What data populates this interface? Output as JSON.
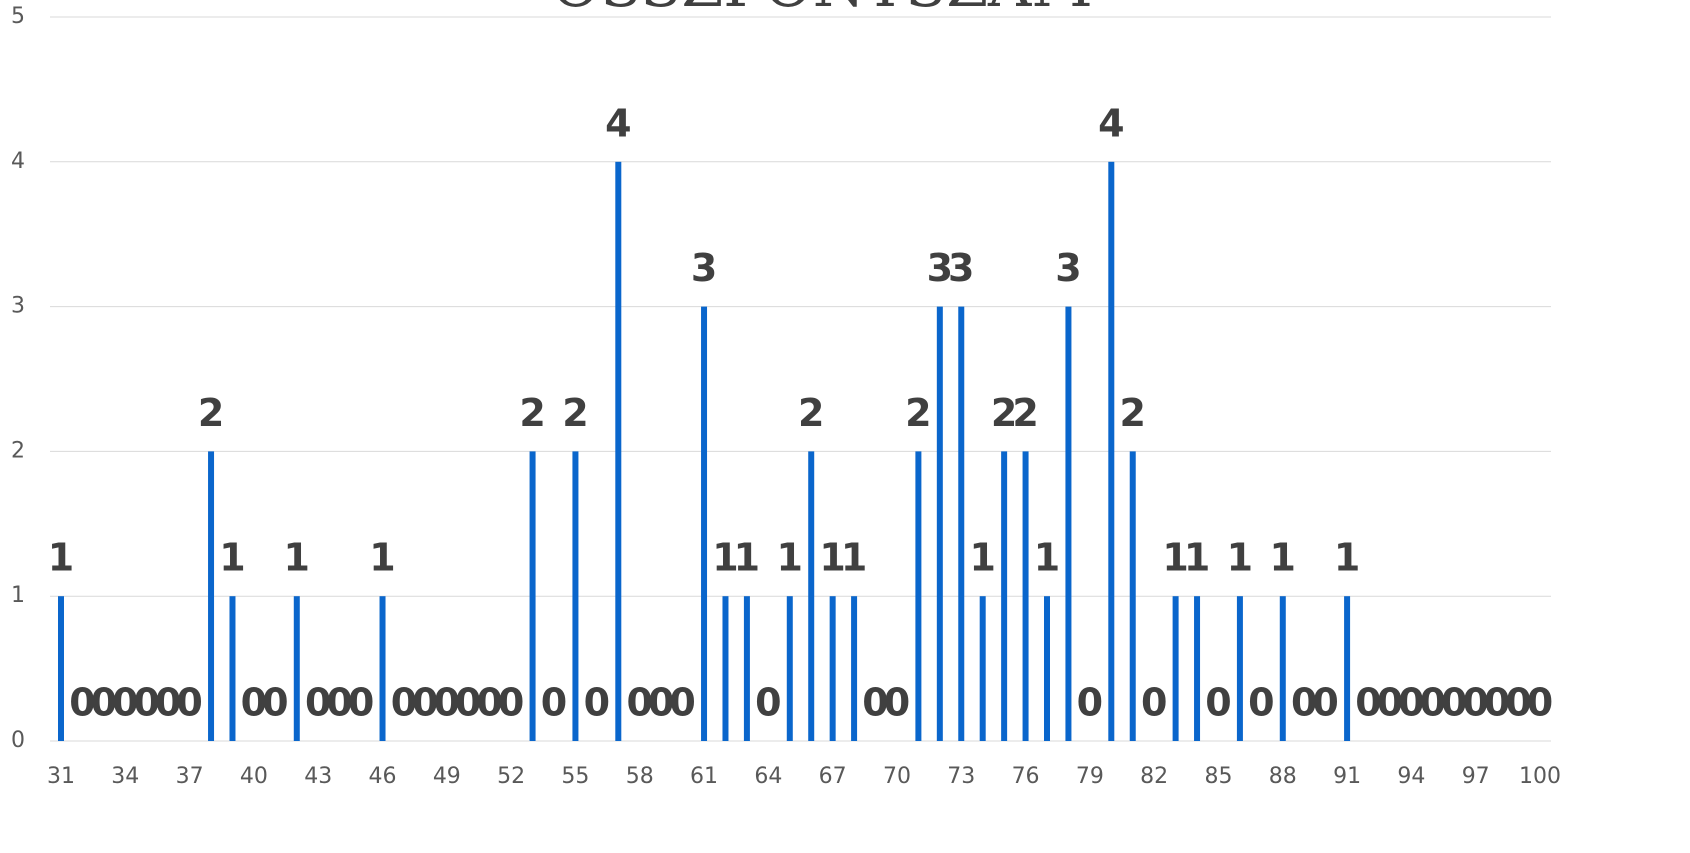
{
  "chart_data": {
    "type": "bar",
    "title": "ÖSSZPONTSZÁM",
    "categories": [
      31,
      null,
      null,
      34,
      null,
      null,
      37,
      null,
      null,
      40,
      null,
      null,
      43,
      null,
      null,
      46,
      null,
      null,
      49,
      null,
      null,
      52,
      null,
      null,
      55,
      null,
      null,
      58,
      null,
      null,
      61,
      null,
      null,
      64,
      null,
      null,
      67,
      null,
      null,
      70,
      null,
      null,
      73,
      null,
      null,
      76,
      null,
      null,
      79,
      null,
      null,
      82,
      null,
      null,
      85,
      null,
      null,
      88,
      null,
      null,
      91,
      null,
      null,
      94,
      null,
      null,
      97,
      null,
      null,
      100
    ],
    "values": [
      1,
      0,
      0,
      0,
      0,
      0,
      0,
      2,
      1,
      0,
      0,
      1,
      0,
      0,
      0,
      1,
      0,
      0,
      0,
      0,
      0,
      0,
      2,
      0,
      2,
      0,
      4,
      0,
      0,
      0,
      3,
      1,
      1,
      0,
      1,
      2,
      1,
      1,
      0,
      0,
      2,
      3,
      3,
      1,
      2,
      2,
      1,
      3,
      0,
      4,
      2,
      0,
      1,
      1,
      0,
      1,
      0,
      1,
      0,
      0,
      1,
      0,
      0,
      0,
      0,
      0,
      0,
      0,
      0,
      0
    ],
    "color": "#0a66cc",
    "ylim": [
      0,
      5
    ],
    "yticks": [
      0,
      1,
      2,
      3,
      4,
      5
    ],
    "grid": true
  }
}
